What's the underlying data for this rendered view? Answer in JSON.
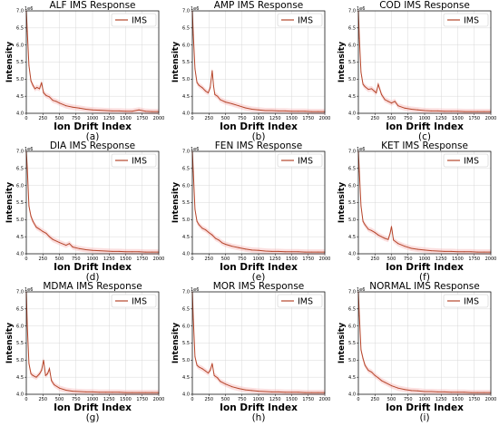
{
  "figure": {
    "panels": 9,
    "grid": "3x3",
    "line_color": "#b5452a",
    "band_color": "#f6b8b8"
  },
  "chart_data": [
    {
      "type": "line",
      "title": "ALF IMS Response",
      "caption": "(a)",
      "xlabel": "Ion Drift Index",
      "ylabel": "Intensity",
      "y_exponent": "1e6",
      "xlim": [
        0,
        2000
      ],
      "ylim": [
        4.0,
        7.0
      ],
      "grid": true,
      "legend": "top-right",
      "x_ticks": [
        0,
        250,
        500,
        750,
        1000,
        1250,
        1500,
        1750,
        2000
      ],
      "y_ticks": [
        4.0,
        4.5,
        5.0,
        5.5,
        6.0,
        6.5,
        7.0
      ],
      "series": [
        {
          "name": "IMS",
          "x": [
            0,
            15,
            40,
            70,
            100,
            130,
            160,
            200,
            230,
            260,
            300,
            350,
            400,
            450,
            500,
            600,
            700,
            800,
            900,
            1000,
            1100,
            1200,
            1300,
            1400,
            1500,
            1600,
            1700,
            1800,
            1900,
            2000
          ],
          "y": [
            7.0,
            6.4,
            5.4,
            4.95,
            4.82,
            4.72,
            4.76,
            4.72,
            4.9,
            4.6,
            4.52,
            4.48,
            4.38,
            4.35,
            4.3,
            4.22,
            4.18,
            4.15,
            4.12,
            4.1,
            4.09,
            4.08,
            4.07,
            4.07,
            4.06,
            4.06,
            4.1,
            4.06,
            4.05,
            4.05
          ]
        }
      ]
    },
    {
      "type": "line",
      "title": "AMP IMS Response",
      "caption": "(b)",
      "xlabel": "Ion Drift Index",
      "ylabel": "Intensity",
      "y_exponent": "1e6",
      "xlim": [
        0,
        2000
      ],
      "ylim": [
        4.0,
        7.0
      ],
      "grid": true,
      "legend": "top-right",
      "x_ticks": [
        0,
        250,
        500,
        750,
        1000,
        1250,
        1500,
        1750,
        2000
      ],
      "y_ticks": [
        4.0,
        4.5,
        5.0,
        5.5,
        6.0,
        6.5,
        7.0
      ],
      "series": [
        {
          "name": "IMS",
          "x": [
            0,
            15,
            40,
            70,
            100,
            150,
            200,
            240,
            270,
            300,
            320,
            340,
            380,
            420,
            500,
            600,
            700,
            800,
            900,
            1000,
            1100,
            1200,
            1300,
            1400,
            1500,
            1600,
            1700,
            1800,
            1900,
            2000
          ],
          "y": [
            7.0,
            6.3,
            5.3,
            4.9,
            4.82,
            4.75,
            4.65,
            4.6,
            4.75,
            5.25,
            4.8,
            4.55,
            4.5,
            4.4,
            4.33,
            4.28,
            4.22,
            4.16,
            4.12,
            4.1,
            4.08,
            4.08,
            4.07,
            4.07,
            4.06,
            4.06,
            4.06,
            4.05,
            4.05,
            4.05
          ]
        }
      ]
    },
    {
      "type": "line",
      "title": "COD IMS Response",
      "caption": "(c)",
      "xlabel": "Ion Drift Index",
      "ylabel": "Intensity",
      "y_exponent": "1e6",
      "xlim": [
        0,
        2000
      ],
      "ylim": [
        4.0,
        7.0
      ],
      "grid": true,
      "legend": "top-right",
      "x_ticks": [
        0,
        250,
        500,
        750,
        1000,
        1250,
        1500,
        1750,
        2000
      ],
      "y_ticks": [
        4.0,
        4.5,
        5.0,
        5.5,
        6.0,
        6.5,
        7.0
      ],
      "series": [
        {
          "name": "IMS",
          "x": [
            0,
            15,
            40,
            70,
            100,
            150,
            200,
            240,
            270,
            300,
            350,
            400,
            450,
            500,
            550,
            600,
            700,
            800,
            900,
            1000,
            1100,
            1200,
            1300,
            1400,
            1500,
            1600,
            1700,
            1800,
            1900,
            2000
          ],
          "y": [
            7.0,
            6.2,
            5.2,
            4.85,
            4.78,
            4.7,
            4.72,
            4.65,
            4.6,
            4.85,
            4.55,
            4.4,
            4.35,
            4.3,
            4.35,
            4.22,
            4.15,
            4.12,
            4.1,
            4.08,
            4.07,
            4.07,
            4.06,
            4.06,
            4.06,
            4.05,
            4.05,
            4.05,
            4.05,
            4.05
          ]
        }
      ]
    },
    {
      "type": "line",
      "title": "DIA IMS Response",
      "caption": "(d)",
      "xlabel": "Ion Drift Index",
      "ylabel": "Intensity",
      "y_exponent": "1e6",
      "xlim": [
        0,
        2000
      ],
      "ylim": [
        4.0,
        7.0
      ],
      "grid": true,
      "legend": "top-right",
      "x_ticks": [
        0,
        250,
        500,
        750,
        1000,
        1250,
        1500,
        1750,
        2000
      ],
      "y_ticks": [
        4.0,
        4.5,
        5.0,
        5.5,
        6.0,
        6.5,
        7.0
      ],
      "series": [
        {
          "name": "IMS",
          "x": [
            0,
            15,
            40,
            70,
            100,
            150,
            200,
            250,
            300,
            350,
            400,
            500,
            600,
            650,
            700,
            800,
            900,
            1000,
            1100,
            1200,
            1300,
            1400,
            1500,
            1600,
            1700,
            1800,
            1900,
            2000
          ],
          "y": [
            7.0,
            6.5,
            5.4,
            5.1,
            4.95,
            4.78,
            4.72,
            4.65,
            4.6,
            4.5,
            4.42,
            4.33,
            4.25,
            4.3,
            4.2,
            4.15,
            4.12,
            4.1,
            4.09,
            4.08,
            4.07,
            4.07,
            4.06,
            4.06,
            4.06,
            4.05,
            4.05,
            4.05
          ]
        }
      ]
    },
    {
      "type": "line",
      "title": "FEN IMS Response",
      "caption": "(e)",
      "xlabel": "Ion Drift Index",
      "ylabel": "Intensity",
      "y_exponent": "1e6",
      "xlim": [
        0,
        2000
      ],
      "ylim": [
        4.0,
        7.0
      ],
      "grid": true,
      "legend": "top-right",
      "x_ticks": [
        0,
        250,
        500,
        750,
        1000,
        1250,
        1500,
        1750,
        2000
      ],
      "y_ticks": [
        4.0,
        4.5,
        5.0,
        5.5,
        6.0,
        6.5,
        7.0
      ],
      "series": [
        {
          "name": "IMS",
          "x": [
            0,
            15,
            40,
            70,
            100,
            150,
            200,
            250,
            300,
            350,
            400,
            450,
            500,
            600,
            700,
            800,
            900,
            1000,
            1100,
            1200,
            1300,
            1400,
            1500,
            1600,
            1700,
            1800,
            1900,
            2000
          ],
          "y": [
            7.0,
            6.4,
            5.3,
            4.95,
            4.85,
            4.75,
            4.7,
            4.62,
            4.55,
            4.45,
            4.4,
            4.32,
            4.28,
            4.22,
            4.18,
            4.14,
            4.11,
            4.1,
            4.08,
            4.07,
            4.07,
            4.06,
            4.06,
            4.06,
            4.05,
            4.05,
            4.05,
            4.05
          ]
        }
      ]
    },
    {
      "type": "line",
      "title": "KET IMS Response",
      "caption": "(f)",
      "xlabel": "Ion Drift Index",
      "ylabel": "Intensity",
      "y_exponent": "1e6",
      "xlim": [
        0,
        2000
      ],
      "ylim": [
        4.0,
        7.0
      ],
      "grid": true,
      "legend": "top-right",
      "x_ticks": [
        0,
        250,
        500,
        750,
        1000,
        1250,
        1500,
        1750,
        2000
      ],
      "y_ticks": [
        4.0,
        4.5,
        5.0,
        5.5,
        6.0,
        6.5,
        7.0
      ],
      "series": [
        {
          "name": "IMS",
          "x": [
            0,
            15,
            40,
            70,
            100,
            150,
            200,
            250,
            300,
            350,
            400,
            450,
            480,
            500,
            530,
            600,
            700,
            800,
            900,
            1000,
            1100,
            1200,
            1300,
            1400,
            1500,
            1600,
            1700,
            1800,
            1900,
            2000
          ],
          "y": [
            7.0,
            6.4,
            5.4,
            4.95,
            4.85,
            4.72,
            4.68,
            4.62,
            4.55,
            4.5,
            4.45,
            4.42,
            4.6,
            4.8,
            4.4,
            4.3,
            4.22,
            4.16,
            4.13,
            4.11,
            4.09,
            4.08,
            4.07,
            4.07,
            4.06,
            4.06,
            4.06,
            4.05,
            4.05,
            4.05
          ]
        }
      ]
    },
    {
      "type": "line",
      "title": "MDMA IMS Response",
      "caption": "(g)",
      "xlabel": "Ion Drift Index",
      "ylabel": "Intensity",
      "y_exponent": "1e6",
      "xlim": [
        0,
        2000
      ],
      "ylim": [
        4.0,
        7.0
      ],
      "grid": true,
      "legend": "top-right",
      "x_ticks": [
        0,
        250,
        500,
        750,
        1000,
        1250,
        1500,
        1750,
        2000
      ],
      "y_ticks": [
        4.0,
        4.5,
        5.0,
        5.5,
        6.0,
        6.5,
        7.0
      ],
      "series": [
        {
          "name": "IMS",
          "x": [
            0,
            15,
            40,
            70,
            100,
            150,
            200,
            230,
            260,
            290,
            320,
            350,
            380,
            420,
            500,
            600,
            700,
            800,
            900,
            1000,
            1100,
            1200,
            1300,
            1400,
            1500,
            1600,
            1700,
            1800,
            1900,
            2000
          ],
          "y": [
            7.0,
            6.0,
            4.9,
            4.6,
            4.55,
            4.5,
            4.6,
            4.7,
            5.0,
            4.55,
            4.6,
            4.75,
            4.4,
            4.28,
            4.18,
            4.12,
            4.09,
            4.08,
            4.07,
            4.07,
            4.06,
            4.06,
            4.06,
            4.06,
            4.05,
            4.05,
            4.05,
            4.05,
            4.05,
            4.05
          ]
        }
      ]
    },
    {
      "type": "line",
      "title": "MOR IMS Response",
      "caption": "(h)",
      "xlabel": "Ion Drift Index",
      "ylabel": "Intensity",
      "y_exponent": "1e6",
      "xlim": [
        0,
        2000
      ],
      "ylim": [
        4.0,
        7.0
      ],
      "grid": true,
      "legend": "top-right",
      "x_ticks": [
        0,
        250,
        500,
        750,
        1000,
        1250,
        1500,
        1750,
        2000
      ],
      "y_ticks": [
        4.0,
        4.5,
        5.0,
        5.5,
        6.0,
        6.5,
        7.0
      ],
      "series": [
        {
          "name": "IMS",
          "x": [
            0,
            15,
            40,
            70,
            100,
            150,
            200,
            240,
            270,
            300,
            330,
            380,
            420,
            500,
            600,
            700,
            800,
            900,
            1000,
            1100,
            1200,
            1300,
            1400,
            1500,
            1600,
            1700,
            1800,
            1900,
            2000
          ],
          "y": [
            7.0,
            6.2,
            5.1,
            4.85,
            4.8,
            4.75,
            4.68,
            4.62,
            4.7,
            4.9,
            4.55,
            4.48,
            4.38,
            4.3,
            4.22,
            4.17,
            4.13,
            4.11,
            4.09,
            4.08,
            4.07,
            4.07,
            4.06,
            4.06,
            4.06,
            4.05,
            4.05,
            4.05,
            4.05
          ]
        }
      ]
    },
    {
      "type": "line",
      "title": "NORMAL IMS Response",
      "caption": "(i)",
      "xlabel": "Ion Drift Index",
      "ylabel": "Intensity",
      "y_exponent": "1e6",
      "xlim": [
        0,
        2000
      ],
      "ylim": [
        4.0,
        7.0
      ],
      "grid": true,
      "legend": "top-right",
      "x_ticks": [
        0,
        250,
        500,
        750,
        1000,
        1250,
        1500,
        1750,
        2000
      ],
      "y_ticks": [
        4.0,
        4.5,
        5.0,
        5.5,
        6.0,
        6.5,
        7.0
      ],
      "series": [
        {
          "name": "IMS",
          "x": [
            0,
            15,
            40,
            70,
            100,
            150,
            200,
            250,
            300,
            350,
            400,
            500,
            600,
            700,
            800,
            900,
            1000,
            1100,
            1200,
            1300,
            1400,
            1500,
            1600,
            1700,
            1800,
            1900,
            2000
          ],
          "y": [
            7.0,
            6.3,
            5.3,
            5.05,
            4.85,
            4.7,
            4.65,
            4.55,
            4.48,
            4.4,
            4.35,
            4.25,
            4.18,
            4.14,
            4.11,
            4.1,
            4.08,
            4.08,
            4.07,
            4.07,
            4.06,
            4.06,
            4.06,
            4.05,
            4.05,
            4.05,
            4.05
          ]
        }
      ]
    }
  ]
}
